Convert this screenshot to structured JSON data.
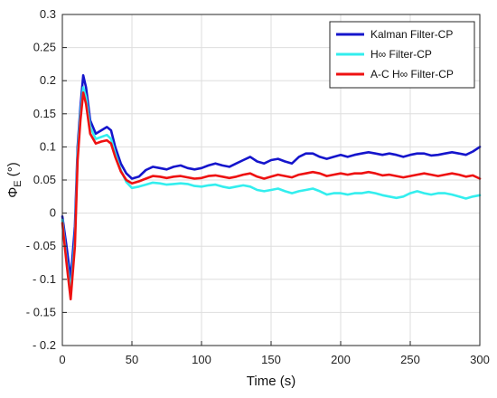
{
  "chart_data": {
    "type": "line",
    "title": "",
    "xlabel": "Time (s)",
    "ylabel_main": "Φ",
    "ylabel_sub": "E",
    "ylabel_unit": " (°)",
    "xlim": [
      0,
      300
    ],
    "ylim": [
      -0.2,
      0.3
    ],
    "x_ticks": [
      0,
      50,
      100,
      150,
      200,
      250,
      300
    ],
    "y_ticks": [
      -0.2,
      -0.15,
      -0.1,
      -0.05,
      0,
      0.05,
      0.1,
      0.15,
      0.2,
      0.25,
      0.3
    ],
    "y_tick_labels": [
      "- 0.2",
      "- 0.15",
      "- 0.1",
      "- 0.05",
      "0",
      "0.05",
      "0.1",
      "0.15",
      "0.2",
      "0.25",
      "0.3"
    ],
    "grid": true,
    "legend_position": "top-right",
    "series": [
      {
        "name": "Kalman Filter-CP",
        "color": "#1515cc",
        "x": [
          0,
          3,
          6,
          9,
          11,
          13,
          15,
          17,
          20,
          24,
          28,
          32,
          35,
          38,
          42,
          46,
          50,
          55,
          60,
          65,
          70,
          75,
          80,
          85,
          90,
          95,
          100,
          105,
          110,
          115,
          120,
          125,
          130,
          135,
          140,
          145,
          150,
          155,
          160,
          165,
          170,
          175,
          180,
          185,
          190,
          195,
          200,
          205,
          210,
          215,
          220,
          225,
          230,
          235,
          240,
          245,
          250,
          255,
          260,
          265,
          270,
          275,
          280,
          285,
          290,
          295,
          300
        ],
        "y": [
          -0.005,
          -0.05,
          -0.1,
          -0.02,
          0.1,
          0.16,
          0.208,
          0.19,
          0.14,
          0.12,
          0.125,
          0.13,
          0.125,
          0.1,
          0.075,
          0.06,
          0.052,
          0.055,
          0.065,
          0.07,
          0.068,
          0.066,
          0.07,
          0.072,
          0.068,
          0.066,
          0.068,
          0.072,
          0.075,
          0.072,
          0.07,
          0.075,
          0.08,
          0.085,
          0.078,
          0.075,
          0.08,
          0.082,
          0.078,
          0.075,
          0.085,
          0.09,
          0.09,
          0.085,
          0.082,
          0.085,
          0.088,
          0.085,
          0.088,
          0.09,
          0.092,
          0.09,
          0.088,
          0.09,
          0.088,
          0.085,
          0.088,
          0.09,
          0.09,
          0.087,
          0.088,
          0.09,
          0.092,
          0.09,
          0.088,
          0.093,
          0.1
        ]
      },
      {
        "name": "H∞ Filter-CP",
        "color": "#33eeee",
        "x": [
          0,
          3,
          6,
          9,
          11,
          13,
          15,
          17,
          20,
          24,
          28,
          32,
          35,
          38,
          42,
          46,
          50,
          55,
          60,
          65,
          70,
          75,
          80,
          85,
          90,
          95,
          100,
          105,
          110,
          115,
          120,
          125,
          130,
          135,
          140,
          145,
          150,
          155,
          160,
          165,
          170,
          175,
          180,
          185,
          190,
          195,
          200,
          205,
          210,
          215,
          220,
          225,
          230,
          235,
          240,
          245,
          250,
          255,
          260,
          265,
          270,
          275,
          280,
          285,
          290,
          295,
          300
        ],
        "y": [
          -0.01,
          -0.07,
          -0.12,
          -0.04,
          0.09,
          0.15,
          0.19,
          0.175,
          0.13,
          0.112,
          0.115,
          0.118,
          0.112,
          0.09,
          0.065,
          0.047,
          0.038,
          0.04,
          0.043,
          0.046,
          0.045,
          0.043,
          0.044,
          0.045,
          0.044,
          0.041,
          0.04,
          0.042,
          0.043,
          0.04,
          0.038,
          0.04,
          0.042,
          0.04,
          0.035,
          0.033,
          0.035,
          0.037,
          0.033,
          0.03,
          0.033,
          0.035,
          0.037,
          0.033,
          0.028,
          0.03,
          0.03,
          0.028,
          0.03,
          0.03,
          0.032,
          0.03,
          0.027,
          0.025,
          0.023,
          0.025,
          0.03,
          0.033,
          0.03,
          0.028,
          0.03,
          0.03,
          0.028,
          0.025,
          0.022,
          0.025,
          0.027
        ]
      },
      {
        "name": "A-C H∞ Filter-CP",
        "color": "#ee1111",
        "x": [
          0,
          3,
          6,
          9,
          11,
          13,
          15,
          17,
          20,
          24,
          28,
          32,
          35,
          38,
          42,
          46,
          50,
          55,
          60,
          65,
          70,
          75,
          80,
          85,
          90,
          95,
          100,
          105,
          110,
          115,
          120,
          125,
          130,
          135,
          140,
          145,
          150,
          155,
          160,
          165,
          170,
          175,
          180,
          185,
          190,
          195,
          200,
          205,
          210,
          215,
          220,
          225,
          230,
          235,
          240,
          245,
          250,
          255,
          260,
          265,
          270,
          275,
          280,
          285,
          290,
          295,
          300
        ],
        "y": [
          -0.015,
          -0.075,
          -0.13,
          -0.05,
          0.08,
          0.14,
          0.182,
          0.165,
          0.12,
          0.105,
          0.108,
          0.11,
          0.105,
          0.085,
          0.063,
          0.05,
          0.045,
          0.048,
          0.052,
          0.056,
          0.055,
          0.053,
          0.055,
          0.056,
          0.054,
          0.052,
          0.053,
          0.056,
          0.057,
          0.055,
          0.053,
          0.055,
          0.058,
          0.06,
          0.055,
          0.052,
          0.055,
          0.058,
          0.056,
          0.054,
          0.058,
          0.06,
          0.062,
          0.06,
          0.056,
          0.058,
          0.06,
          0.058,
          0.06,
          0.06,
          0.062,
          0.06,
          0.057,
          0.058,
          0.056,
          0.054,
          0.056,
          0.058,
          0.06,
          0.058,
          0.056,
          0.058,
          0.06,
          0.058,
          0.055,
          0.057,
          0.052
        ]
      }
    ]
  }
}
